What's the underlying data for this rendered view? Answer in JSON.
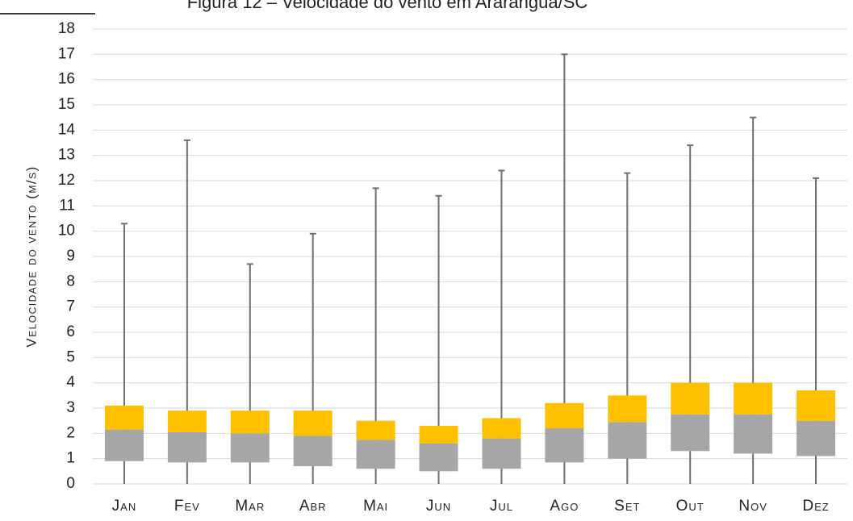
{
  "chart_data": {
    "type": "box",
    "title": "Figura 12 – Velocidade do vento em Araranguá/SC",
    "ylabel": "Velocidade do vento (m/s)",
    "categories": [
      "Jan",
      "Fev",
      "Mar",
      "Abr",
      "Mai",
      "Jun",
      "Jul",
      "Ago",
      "Set",
      "Out",
      "Nov",
      "Dez"
    ],
    "min": [
      0,
      0,
      0,
      0,
      0,
      0,
      0,
      0,
      0,
      0,
      0,
      0
    ],
    "q1": [
      0.9,
      0.85,
      0.85,
      0.7,
      0.6,
      0.5,
      0.6,
      0.85,
      1.0,
      1.3,
      1.2,
      1.1
    ],
    "median": [
      2.15,
      2.05,
      2.0,
      1.9,
      1.75,
      1.6,
      1.8,
      2.2,
      2.45,
      2.75,
      2.75,
      2.5
    ],
    "q3": [
      3.1,
      2.9,
      2.9,
      2.9,
      2.5,
      2.3,
      2.6,
      3.2,
      3.5,
      4.0,
      4.0,
      3.7
    ],
    "max": [
      10.3,
      13.6,
      8.7,
      9.9,
      11.7,
      11.4,
      12.4,
      17.0,
      12.3,
      13.4,
      14.5,
      12.1
    ],
    "lower_color": "#a6a6a6",
    "upper_color": "#ffc000",
    "whisker_color": "#6f6f6f",
    "ylim": [
      0,
      18
    ],
    "yticks": [
      0,
      1,
      2,
      3,
      4,
      5,
      6,
      7,
      8,
      9,
      10,
      11,
      12,
      13,
      14,
      15,
      16,
      17,
      18
    ],
    "grid": true
  }
}
